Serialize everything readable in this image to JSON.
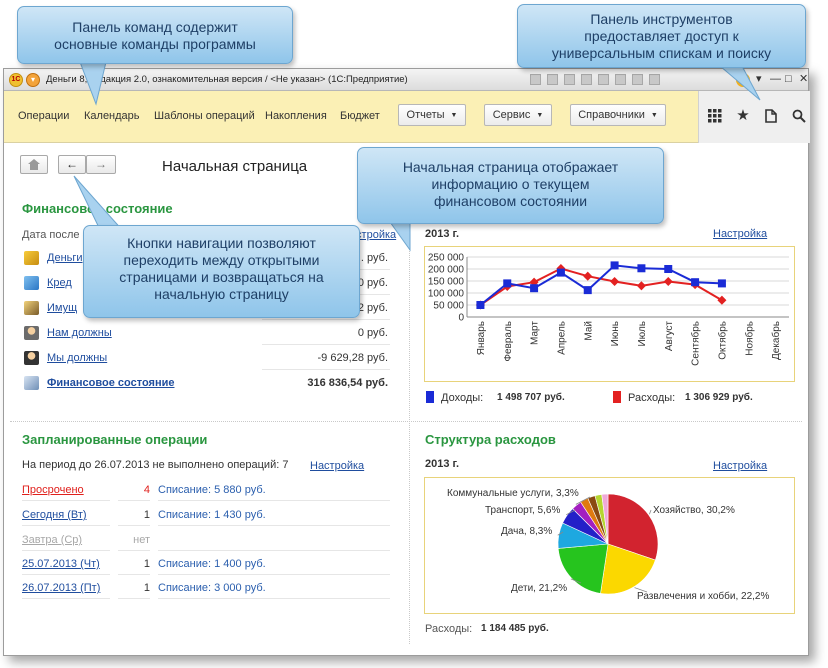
{
  "window": {
    "title": "Деньги 8, редакция 2.0, ознакомительная версия / <Не указан>  (1С:Предприятие)",
    "logo_text": "1С"
  },
  "command_panel": {
    "items": [
      "Операции",
      "Календарь",
      "Шаблоны операций",
      "Накопления",
      "Бюджет"
    ],
    "dropdowns": [
      "Отчеты",
      "Сервис",
      "Справочники"
    ]
  },
  "tools": {
    "icons": [
      "apps-grid-icon",
      "favorites-star-icon",
      "history-icon",
      "search-icon"
    ]
  },
  "page": {
    "title": "Начальная страница"
  },
  "finance": {
    "title": "Финансовое состояние",
    "date_label": "Дата после",
    "settings": "Настройка",
    "rows": [
      {
        "label": "Деньги",
        "value": "... руб."
      },
      {
        "label": "Кред",
        "value": "...0 руб."
      },
      {
        "label": "Имущ",
        "value": "...2 руб."
      },
      {
        "label": "Нам должны",
        "value": "0 руб."
      },
      {
        "label": "Мы должны",
        "value": "-9 629,28 руб."
      }
    ],
    "total_label": "Финансовое состояние",
    "total_value": "316 836,54 руб."
  },
  "income_chart": {
    "year": "2013 г.",
    "settings": "Настройка",
    "income_label": "Доходы:",
    "income_total": "1 498 707 руб.",
    "expense_label": "Расходы:",
    "expense_total": "1 306 929 руб."
  },
  "planned": {
    "title": "Запланированные операции",
    "period_text": "На период до 26.07.2013 не выполнено операций: 7",
    "settings": "Настройка",
    "rows": [
      {
        "label": "Просрочено",
        "count": "4",
        "op": "Списание: 5 880 руб.",
        "state": "overdue"
      },
      {
        "label": "Сегодня (Вт)",
        "count": "1",
        "op": "Списание: 1 430 руб.",
        "state": "normal"
      },
      {
        "label": "Завтра (Ср)",
        "count": "нет",
        "op": "",
        "state": "disabled"
      },
      {
        "label": "25.07.2013 (Чт)",
        "count": "1",
        "op": "Списание: 1 400 руб.",
        "state": "normal"
      },
      {
        "label": "26.07.2013 (Пт)",
        "count": "1",
        "op": "Списание: 3 000 руб.",
        "state": "normal"
      }
    ]
  },
  "expenses": {
    "title": "Структура расходов",
    "year": "2013 г.",
    "settings": "Настройка",
    "total_label": "Расходы:",
    "total_value": "1 184 485 руб."
  },
  "callouts": {
    "command_panel": [
      "Панель команд содержит",
      "основные команды программы"
    ],
    "tools_panel": [
      "Панель инструментов",
      "предоставляет доступ к",
      "универсальным спискам и поиску"
    ],
    "home_page": [
      "Начальная страница отображает",
      "информацию о текущем",
      "финансовом состоянии"
    ],
    "navigation": [
      "Кнопки навигации позволяют",
      "переходить между открытыми",
      "страницами и возвращаться на",
      "начальную страницу"
    ]
  },
  "colors": {
    "accent_green": "#2a9640",
    "link_blue": "#1f4d9e",
    "overdue_red": "#e0201c",
    "command_panel_bg": "#fbf0b5",
    "income_series": "#1a2bd6",
    "expense_series": "#e32121"
  },
  "chart_data": [
    {
      "type": "line",
      "title": "2013 г.",
      "categories": [
        "Январь",
        "Февраль",
        "Март",
        "Апрель",
        "Май",
        "Июнь",
        "Июль",
        "Август",
        "Сентябрь",
        "Октябрь",
        "Ноябрь",
        "Декабрь"
      ],
      "y_ticks": [
        "0",
        "50 000",
        "100 000",
        "150 000",
        "200 000",
        "250 000"
      ],
      "ylim": [
        0,
        250000
      ],
      "grid": true,
      "legend": "bottom",
      "series": [
        {
          "name": "Доходы",
          "color": "#1a2bd6",
          "values": [
            50000,
            140000,
            120000,
            185000,
            112000,
            215000,
            203000,
            200000,
            145000,
            140000,
            null,
            null
          ]
        },
        {
          "name": "Расходы",
          "color": "#e32121",
          "values": [
            50000,
            127000,
            145000,
            202000,
            170000,
            148000,
            130000,
            148000,
            135000,
            70000,
            null,
            null
          ]
        }
      ]
    },
    {
      "type": "pie",
      "title": "Структура расходов",
      "slices": [
        {
          "label": "Хозяйство, 30,2%",
          "value": 30.2,
          "color": "#d2232f"
        },
        {
          "label": "Развлечения и хобби, 22,2%",
          "value": 22.2,
          "color": "#fbd800"
        },
        {
          "label": "Дети, 21,2%",
          "value": 21.2,
          "color": "#26c41e"
        },
        {
          "label": "Дача, 8,3%",
          "value": 8.3,
          "color": "#1ea8e0"
        },
        {
          "label": "Транспорт, 5,6%",
          "value": 5.6,
          "color": "#2320c8"
        },
        {
          "label": "Коммунальные услуги, 3,3%",
          "value": 3.3,
          "color": "#a31fc0"
        },
        {
          "label": "",
          "value": 2.6,
          "color": "#e07a10"
        },
        {
          "label": "",
          "value": 2.4,
          "color": "#8a4a12"
        },
        {
          "label": "",
          "value": 2.2,
          "color": "#b6d630"
        },
        {
          "label": "",
          "value": 2.0,
          "color": "#f0a8d8"
        }
      ]
    }
  ]
}
